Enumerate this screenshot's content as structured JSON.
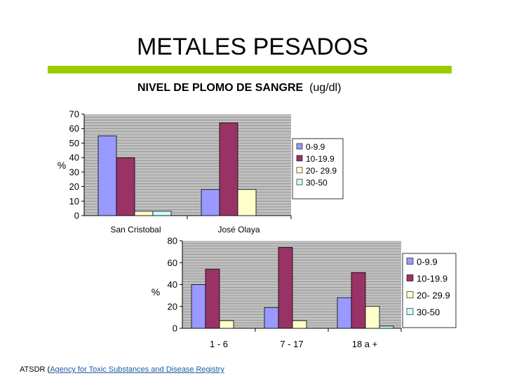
{
  "slide": {
    "title": "METALES PESADOS",
    "subtitle_bold": "NIVEL DE PLOMO DE SANGRE",
    "subtitle_unit": "(ug/dl)",
    "footer_prefix": "ATSDR (",
    "footer_link": "Agency for Toxic Substances and Disease Registry"
  },
  "colors": {
    "plot_bg": "#c0c0c0",
    "grid": "#808080",
    "series": [
      "#9999ff",
      "#993366",
      "#ffffcc",
      "#ccffff"
    ]
  },
  "chart_data": [
    {
      "type": "bar",
      "ylabel": "%",
      "ylim": [
        0,
        70
      ],
      "yticks": [
        0,
        10,
        20,
        30,
        40,
        50,
        60,
        70
      ],
      "categories": [
        "San Cristobal",
        "José Olaya"
      ],
      "series": [
        {
          "name": "0-9.9",
          "values": [
            55,
            18
          ]
        },
        {
          "name": "10-19.9",
          "values": [
            40,
            64
          ]
        },
        {
          "name": "20- 29.9",
          "values": [
            3,
            18
          ]
        },
        {
          "name": "30-50",
          "values": [
            3,
            0
          ]
        }
      ],
      "grid": true,
      "legend": "right"
    },
    {
      "type": "bar",
      "ylabel": "%",
      "ylim": [
        0,
        80
      ],
      "yticks": [
        0,
        20,
        40,
        60,
        80
      ],
      "categories": [
        "1 - 6",
        "7 - 17",
        "18 a +"
      ],
      "series": [
        {
          "name": "0-9.9",
          "values": [
            40,
            19,
            28
          ]
        },
        {
          "name": "10-19.9",
          "values": [
            54,
            74,
            51
          ]
        },
        {
          "name": "20- 29.9",
          "values": [
            7,
            7,
            20
          ]
        },
        {
          "name": "30-50",
          "values": [
            0,
            0,
            2
          ]
        }
      ],
      "grid": true,
      "legend": "right"
    }
  ]
}
